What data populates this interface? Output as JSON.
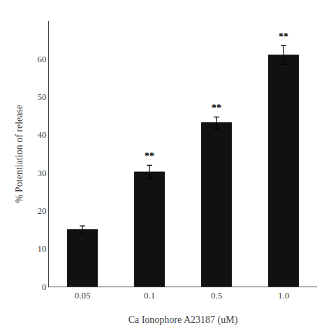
{
  "chart_data": {
    "type": "bar",
    "categories": [
      "0.05",
      "0.1",
      "0.5",
      "1.0"
    ],
    "values": [
      15.0,
      30.2,
      43.2,
      61.0
    ],
    "errors": [
      1.0,
      1.8,
      1.5,
      2.5
    ],
    "significance": [
      null,
      "**",
      "**",
      "**"
    ],
    "color": "#111111",
    "xlabel": "Ca Ionophore A23187 (uM)",
    "ylabel": "% Potentiation of release",
    "ylim": [
      0,
      70
    ],
    "yticks": [
      0,
      10,
      20,
      30,
      40,
      50,
      60
    ],
    "grid": false
  }
}
